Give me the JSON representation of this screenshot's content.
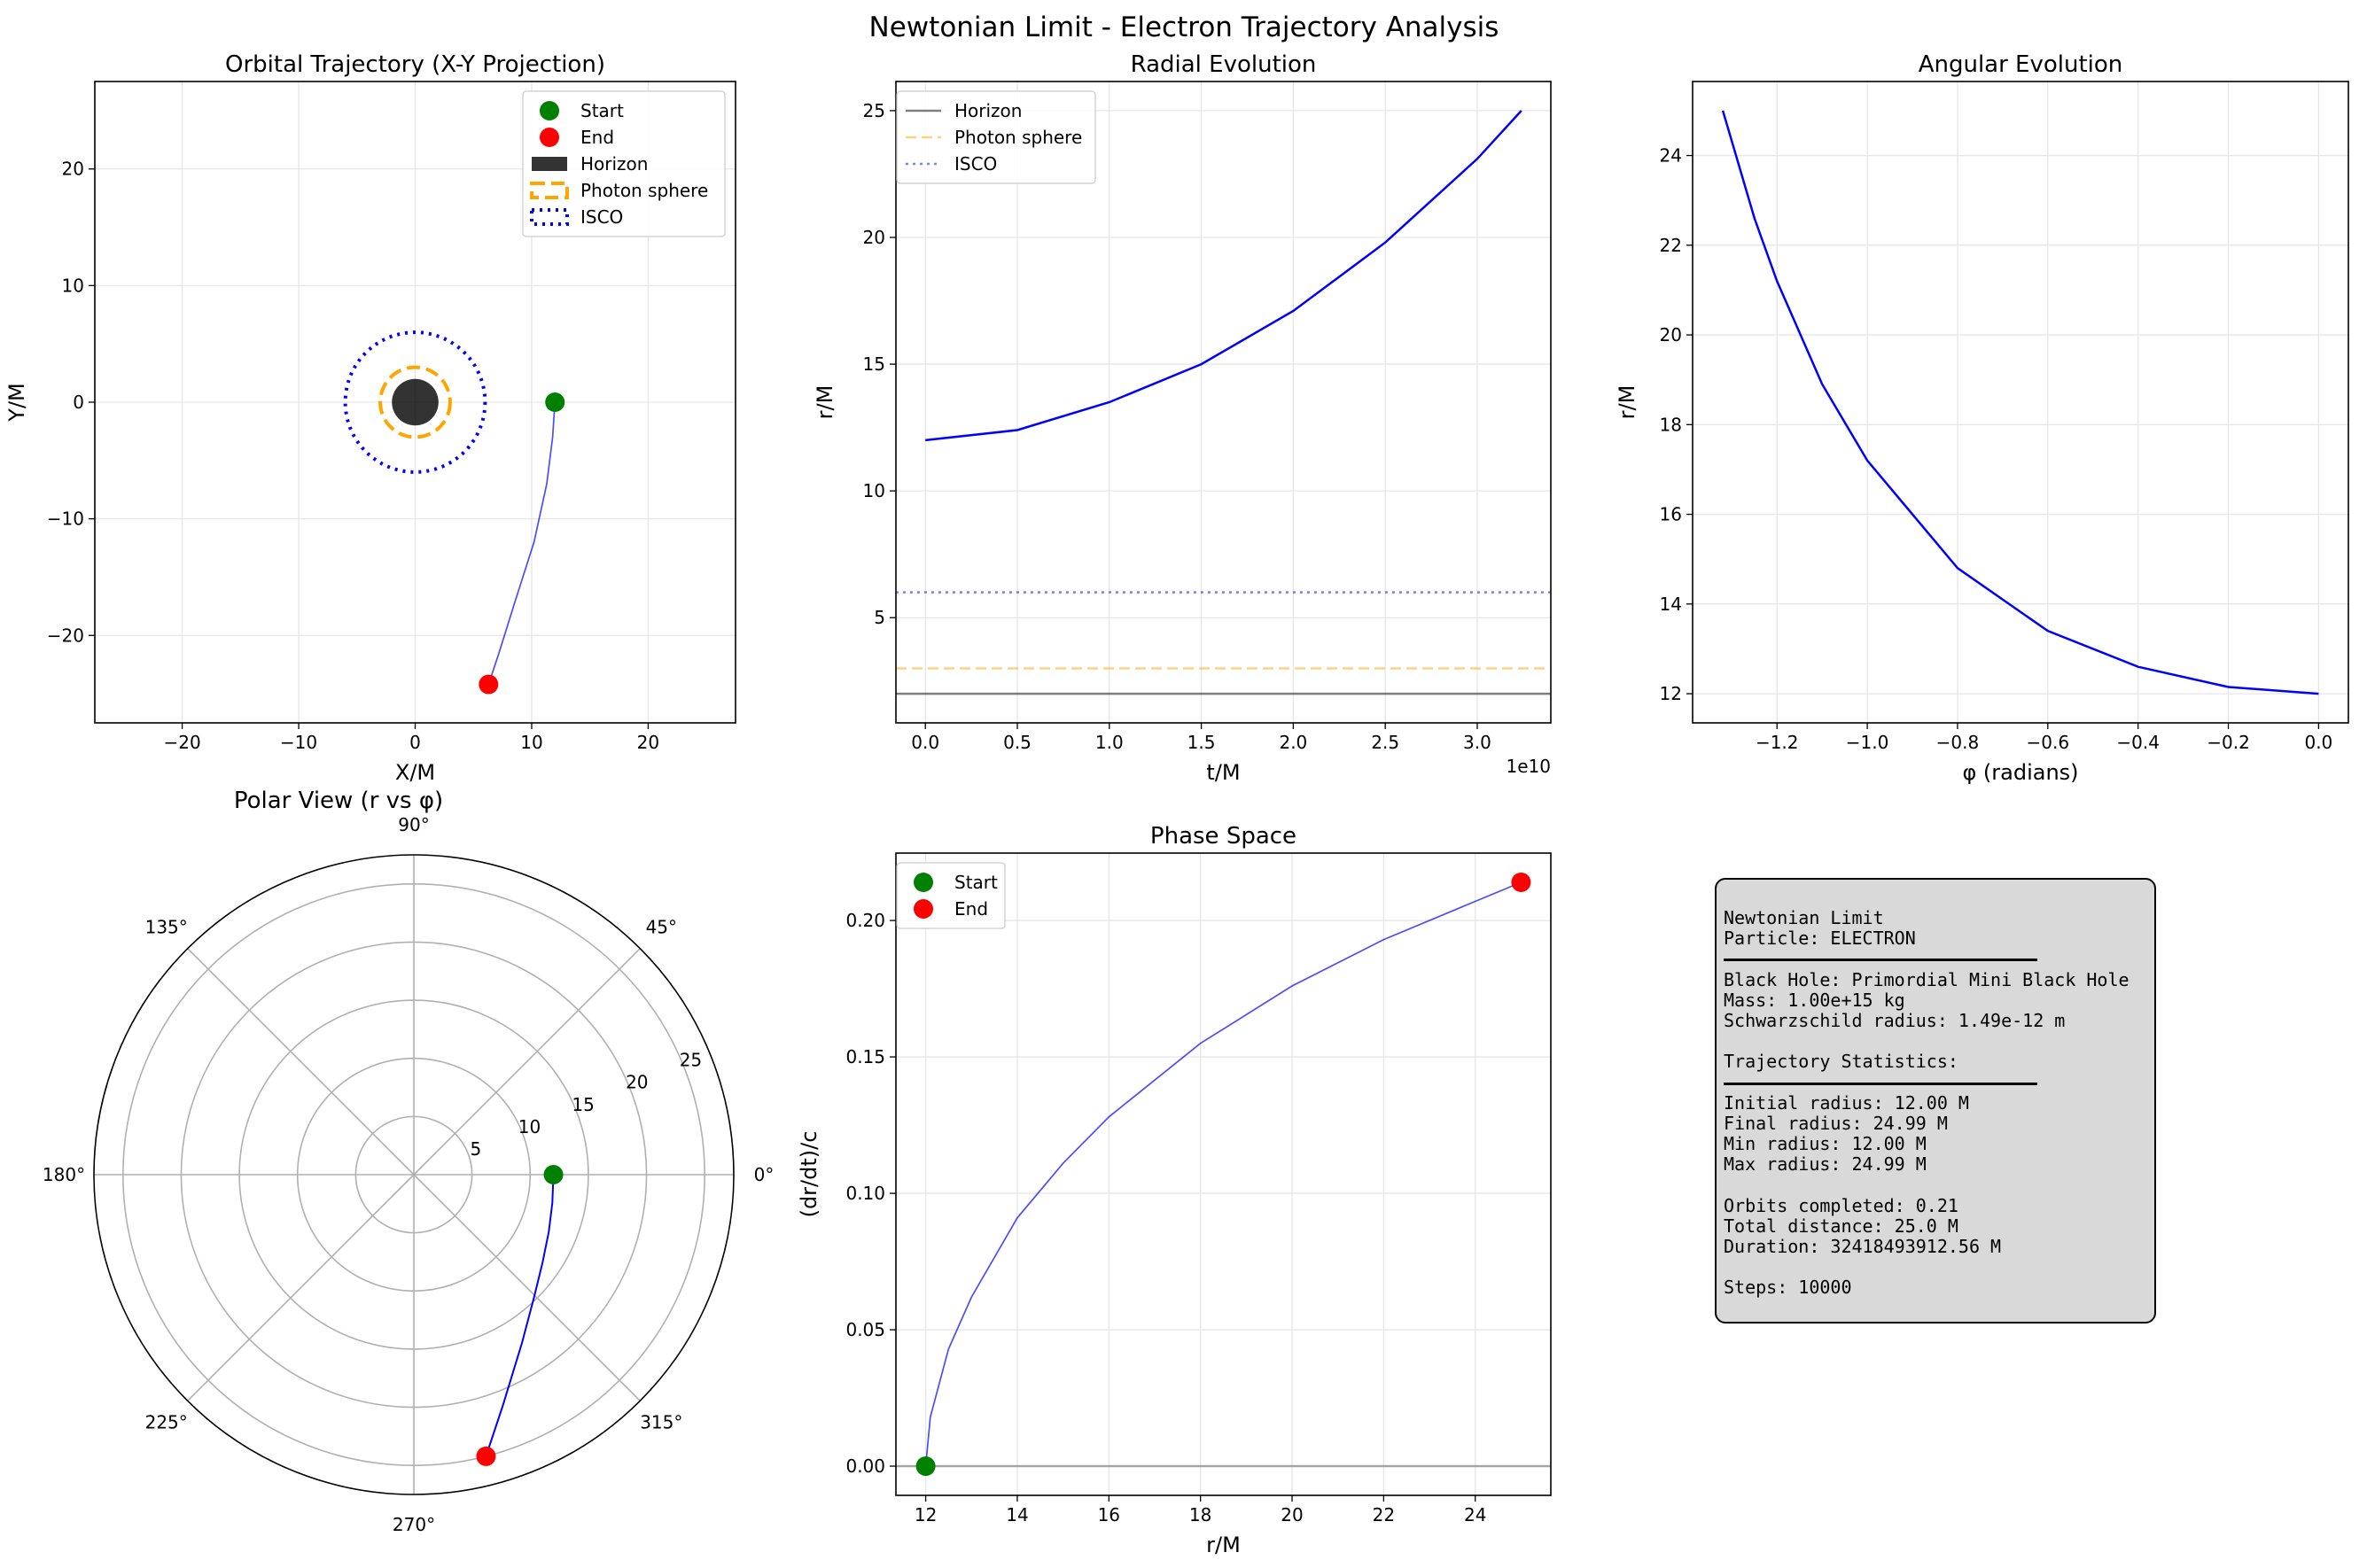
{
  "figure_title": "Newtonian Limit - Electron Trajectory Analysis",
  "colors": {
    "trajectory": "#0000ff",
    "start": "#008000",
    "end": "#ff0000",
    "horizon": "#000000",
    "photon_sphere": "#ffa500",
    "isco": "#0000ff",
    "grid": "#e6e6e6"
  },
  "chart_data": [
    {
      "id": "orbit",
      "type": "scatter",
      "title": "Orbital Trajectory (X-Y Projection)",
      "xlabel": "X/M",
      "ylabel": "Y/M",
      "xlim": [
        -27.5,
        27.5
      ],
      "ylim": [
        -27.5,
        27.5
      ],
      "xticks": [
        -20,
        -10,
        0,
        10,
        20
      ],
      "yticks": [
        -20,
        -10,
        0,
        10,
        20
      ],
      "grid": true,
      "legend_position": "top-right",
      "legend": [
        "Start",
        "End",
        "Horizon",
        "Photon sphere",
        "ISCO"
      ],
      "horizon_radius": 2,
      "photon_sphere_radius": 3,
      "isco_radius": 6,
      "trajectory": {
        "x": [
          12.0,
          11.8,
          11.3,
          10.2,
          8.6,
          7.2,
          6.3
        ],
        "y": [
          0.0,
          -3.0,
          -7.0,
          -12.0,
          -17.0,
          -21.5,
          -24.2
        ]
      },
      "start": [
        12.0,
        0.0
      ],
      "end": [
        6.3,
        -24.2
      ]
    },
    {
      "id": "radial",
      "type": "line",
      "title": "Radial Evolution",
      "xlabel": "t/M",
      "ylabel": "r/M",
      "x_offset_label": "1e10",
      "xlim": [
        -0.16,
        3.4
      ],
      "ylim": [
        0.85,
        26.15
      ],
      "xticks": [
        0,
        0.5,
        1.0,
        1.5,
        2.0,
        2.5,
        3.0
      ],
      "xtick_labels": [
        "0.0",
        "0.5",
        "1.0",
        "1.5",
        "2.0",
        "2.5",
        "3.0"
      ],
      "yticks": [
        5,
        10,
        15,
        20,
        25
      ],
      "grid": true,
      "legend_position": "top-left",
      "legend": [
        "Horizon",
        "Photon sphere",
        "ISCO"
      ],
      "series": [
        {
          "name": "trajectory",
          "x": [
            0,
            0.5,
            1.0,
            1.5,
            2.0,
            2.5,
            3.0,
            3.24
          ],
          "y": [
            12.0,
            12.4,
            13.5,
            15.0,
            17.1,
            19.8,
            23.1,
            25.0
          ]
        }
      ],
      "hlines": [
        {
          "name": "Horizon",
          "y": 2
        },
        {
          "name": "Photon sphere",
          "y": 3
        },
        {
          "name": "ISCO",
          "y": 6
        }
      ]
    },
    {
      "id": "angular",
      "type": "line",
      "title": "Angular Evolution",
      "xlabel": "φ (radians)",
      "ylabel": "r/M",
      "xlim": [
        -1.387,
        0.066
      ],
      "ylim": [
        11.35,
        25.65
      ],
      "xticks": [
        -1.2,
        -1.0,
        -0.8,
        -0.6,
        -0.4,
        -0.2,
        0.0
      ],
      "xtick_labels": [
        "−1.2",
        "−1.0",
        "−0.8",
        "−0.6",
        "−0.4",
        "−0.2",
        "0.0"
      ],
      "yticks": [
        12,
        14,
        16,
        18,
        20,
        22,
        24
      ],
      "grid": true,
      "series": [
        {
          "name": "trajectory",
          "x": [
            0.0,
            -0.2,
            -0.4,
            -0.6,
            -0.8,
            -1.0,
            -1.1,
            -1.2,
            -1.25,
            -1.32
          ],
          "y": [
            12.0,
            12.15,
            12.6,
            13.4,
            14.8,
            17.2,
            18.9,
            21.2,
            22.6,
            25.0
          ]
        }
      ]
    },
    {
      "id": "polar",
      "type": "line",
      "title": "Polar View (r vs φ)",
      "rlim": [
        0,
        27.5
      ],
      "rticks": [
        5,
        10,
        15,
        20,
        25
      ],
      "theta_labels": [
        "0°",
        "45°",
        "90°",
        "135°",
        "180°",
        "225°",
        "270°",
        "315°"
      ],
      "series": [
        {
          "name": "trajectory",
          "theta": [
            0.0,
            -0.2,
            -0.4,
            -0.6,
            -0.8,
            -1.0,
            -1.1,
            -1.2,
            -1.25,
            -1.32
          ],
          "r": [
            12.0,
            12.15,
            12.6,
            13.4,
            14.8,
            17.2,
            18.9,
            21.2,
            22.6,
            25.0
          ]
        }
      ],
      "start": [
        0.0,
        12.0
      ],
      "end": [
        -1.32,
        25.0
      ]
    },
    {
      "id": "phase",
      "type": "line",
      "title": "Phase Space",
      "xlabel": "r/M",
      "ylabel": "(dr/dt)/c",
      "xlim": [
        11.35,
        25.65
      ],
      "ylim": [
        -0.0107,
        0.2247
      ],
      "xticks": [
        12,
        14,
        16,
        18,
        20,
        22,
        24
      ],
      "yticks": [
        0,
        0.05,
        0.1,
        0.15,
        0.2
      ],
      "ytick_labels": [
        "0.00",
        "0.05",
        "0.10",
        "0.15",
        "0.20"
      ],
      "grid": true,
      "legend_position": "top-left",
      "legend": [
        "Start",
        "End"
      ],
      "series": [
        {
          "name": "trajectory",
          "x": [
            12.0,
            12.1,
            12.5,
            13.0,
            14.0,
            15.0,
            16.0,
            18.0,
            20.0,
            22.0,
            24.0,
            25.0
          ],
          "y": [
            0.0,
            0.018,
            0.043,
            0.062,
            0.091,
            0.111,
            0.128,
            0.155,
            0.176,
            0.193,
            0.207,
            0.214
          ]
        }
      ],
      "zero_line": 0,
      "start": [
        12.0,
        0.0
      ],
      "end": [
        25.0,
        0.214
      ]
    }
  ],
  "stats": {
    "lines": [
      {
        "kind": "text",
        "text": "Newtonian Limit"
      },
      {
        "kind": "text",
        "text": "Particle: ELECTRON"
      },
      {
        "kind": "rule"
      },
      {
        "kind": "text",
        "text": "Black Hole: Primordial Mini Black Hole"
      },
      {
        "kind": "text",
        "text": "Mass: 1.00e+15 kg"
      },
      {
        "kind": "text",
        "text": "Schwarzschild radius: 1.49e-12 m"
      },
      {
        "kind": "blank"
      },
      {
        "kind": "text",
        "text": "Trajectory Statistics:"
      },
      {
        "kind": "rule"
      },
      {
        "kind": "text",
        "text": "Initial radius: 12.00 M"
      },
      {
        "kind": "text",
        "text": "Final radius: 24.99 M"
      },
      {
        "kind": "text",
        "text": "Min radius: 12.00 M"
      },
      {
        "kind": "text",
        "text": "Max radius: 24.99 M"
      },
      {
        "kind": "blank"
      },
      {
        "kind": "text",
        "text": "Orbits completed: 0.21"
      },
      {
        "kind": "text",
        "text": "Total distance: 25.0 M"
      },
      {
        "kind": "text",
        "text": "Duration: 32418493912.56 M"
      },
      {
        "kind": "blank"
      },
      {
        "kind": "text",
        "text": "Steps: 10000"
      }
    ]
  }
}
